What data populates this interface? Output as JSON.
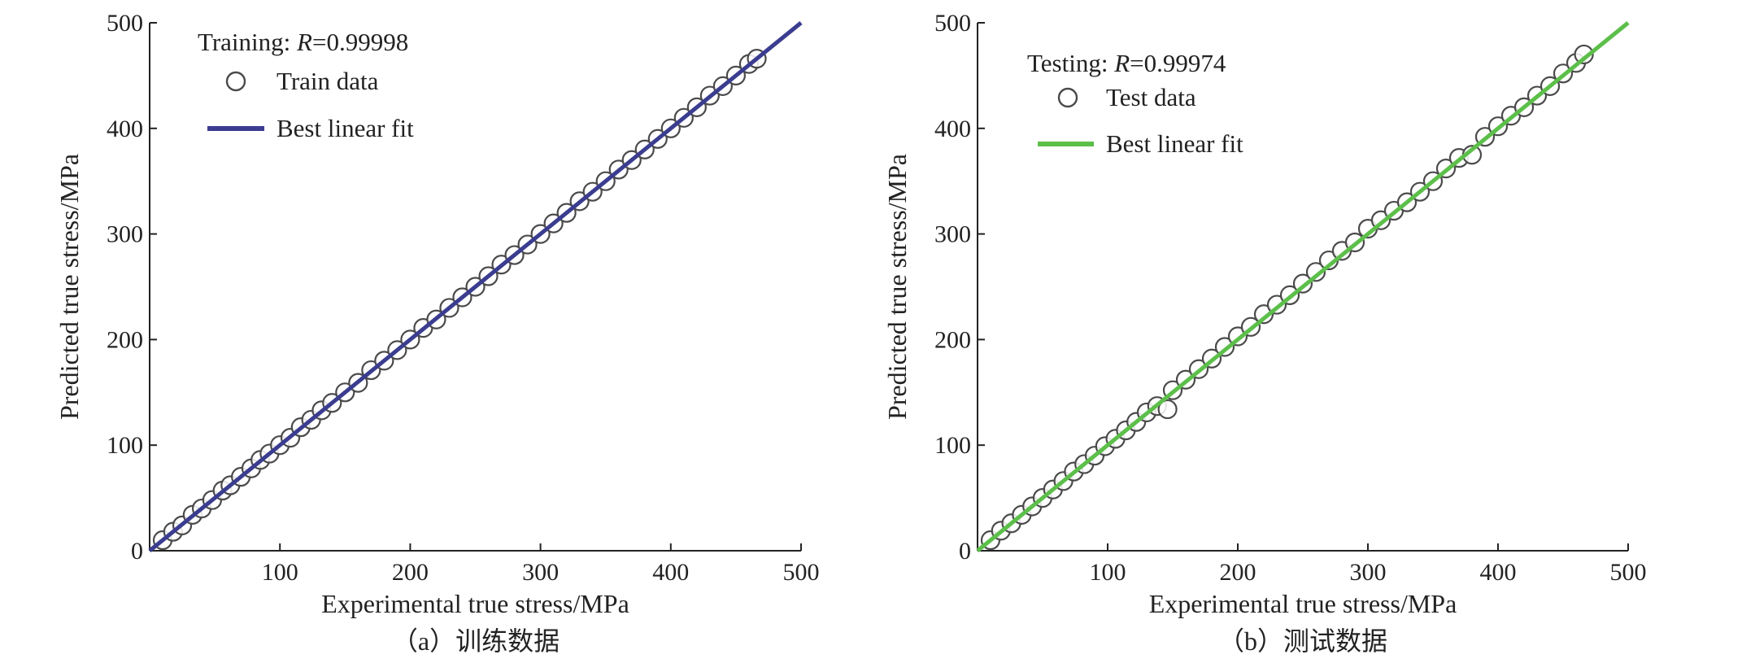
{
  "chart_data": [
    {
      "type": "scatter",
      "panel_caption": "（a）训练数据",
      "annotation": {
        "prefix": "Training: ",
        "variable": "R",
        "value": "=0.99998"
      },
      "xlabel": "Experimental true stress/MPa",
      "ylabel": "Predicted true stress/MPa",
      "xlim": [
        0,
        500
      ],
      "ylim": [
        0,
        500
      ],
      "xticks": [
        100,
        200,
        300,
        400,
        500
      ],
      "yticks": [
        0,
        100,
        200,
        300,
        400,
        500
      ],
      "legend_placement": "top-left",
      "grid": false,
      "series": [
        {
          "name": "Train data",
          "marker": "open-circle",
          "color": "#555555",
          "points": [
            [
              10,
              10
            ],
            [
              18,
              18
            ],
            [
              25,
              24
            ],
            [
              33,
              34
            ],
            [
              40,
              40
            ],
            [
              48,
              48
            ],
            [
              56,
              57
            ],
            [
              62,
              62
            ],
            [
              70,
              70
            ],
            [
              78,
              78
            ],
            [
              85,
              86
            ],
            [
              92,
              92
            ],
            [
              100,
              100
            ],
            [
              108,
              107
            ],
            [
              116,
              117
            ],
            [
              124,
              124
            ],
            [
              132,
              133
            ],
            [
              140,
              140
            ],
            [
              150,
              150
            ],
            [
              160,
              159
            ],
            [
              170,
              171
            ],
            [
              180,
              180
            ],
            [
              190,
              190
            ],
            [
              200,
              200
            ],
            [
              210,
              211
            ],
            [
              220,
              219
            ],
            [
              230,
              230
            ],
            [
              240,
              240
            ],
            [
              250,
              250
            ],
            [
              260,
              260
            ],
            [
              270,
              271
            ],
            [
              280,
              280
            ],
            [
              290,
              290
            ],
            [
              300,
              300
            ],
            [
              310,
              310
            ],
            [
              320,
              320
            ],
            [
              330,
              331
            ],
            [
              340,
              340
            ],
            [
              350,
              350
            ],
            [
              360,
              361
            ],
            [
              370,
              370
            ],
            [
              380,
              380
            ],
            [
              390,
              390
            ],
            [
              400,
              400
            ],
            [
              410,
              410
            ],
            [
              420,
              420
            ],
            [
              430,
              431
            ],
            [
              440,
              440
            ],
            [
              450,
              450
            ],
            [
              460,
              461
            ],
            [
              466,
              466
            ]
          ]
        },
        {
          "name": "Best linear fit",
          "type": "line",
          "color": "#3a3d8f",
          "x": [
            0,
            500
          ],
          "y": [
            0,
            500
          ]
        }
      ]
    },
    {
      "type": "scatter",
      "panel_caption": "（b）测试数据",
      "annotation": {
        "prefix": "Testing: ",
        "variable": "R",
        "value": "=0.99974"
      },
      "xlabel": "Experimental true stress/MPa",
      "ylabel": "Predicted true stress/MPa",
      "xlim": [
        0,
        500
      ],
      "ylim": [
        0,
        500
      ],
      "xticks": [
        100,
        200,
        300,
        400,
        500
      ],
      "yticks": [
        0,
        100,
        200,
        300,
        400,
        500
      ],
      "legend_placement": "top-left",
      "grid": false,
      "series": [
        {
          "name": "Test data",
          "marker": "open-circle",
          "color": "#555555",
          "points": [
            [
              10,
              10
            ],
            [
              18,
              19
            ],
            [
              26,
              26
            ],
            [
              34,
              34
            ],
            [
              42,
              42
            ],
            [
              50,
              50
            ],
            [
              58,
              58
            ],
            [
              66,
              66
            ],
            [
              74,
              75
            ],
            [
              82,
              82
            ],
            [
              90,
              90
            ],
            [
              98,
              99
            ],
            [
              106,
              106
            ],
            [
              114,
              114
            ],
            [
              122,
              122
            ],
            [
              130,
              131
            ],
            [
              138,
              137
            ],
            [
              146,
              134
            ],
            [
              150,
              152
            ],
            [
              160,
              162
            ],
            [
              170,
              172
            ],
            [
              180,
              182
            ],
            [
              190,
              193
            ],
            [
              200,
              203
            ],
            [
              210,
              212
            ],
            [
              220,
              224
            ],
            [
              230,
              233
            ],
            [
              240,
              242
            ],
            [
              250,
              253
            ],
            [
              260,
              264
            ],
            [
              270,
              275
            ],
            [
              280,
              284
            ],
            [
              290,
              292
            ],
            [
              300,
              305
            ],
            [
              310,
              313
            ],
            [
              320,
              322
            ],
            [
              330,
              330
            ],
            [
              340,
              340
            ],
            [
              350,
              350
            ],
            [
              360,
              362
            ],
            [
              370,
              372
            ],
            [
              380,
              375
            ],
            [
              390,
              392
            ],
            [
              400,
              402
            ],
            [
              410,
              412
            ],
            [
              420,
              420
            ],
            [
              430,
              431
            ],
            [
              440,
              440
            ],
            [
              450,
              452
            ],
            [
              460,
              462
            ],
            [
              466,
              470
            ]
          ]
        },
        {
          "name": "Best linear fit",
          "type": "line",
          "color": "#5cbf4a",
          "x": [
            0,
            500
          ],
          "y": [
            0,
            500
          ]
        }
      ]
    }
  ]
}
